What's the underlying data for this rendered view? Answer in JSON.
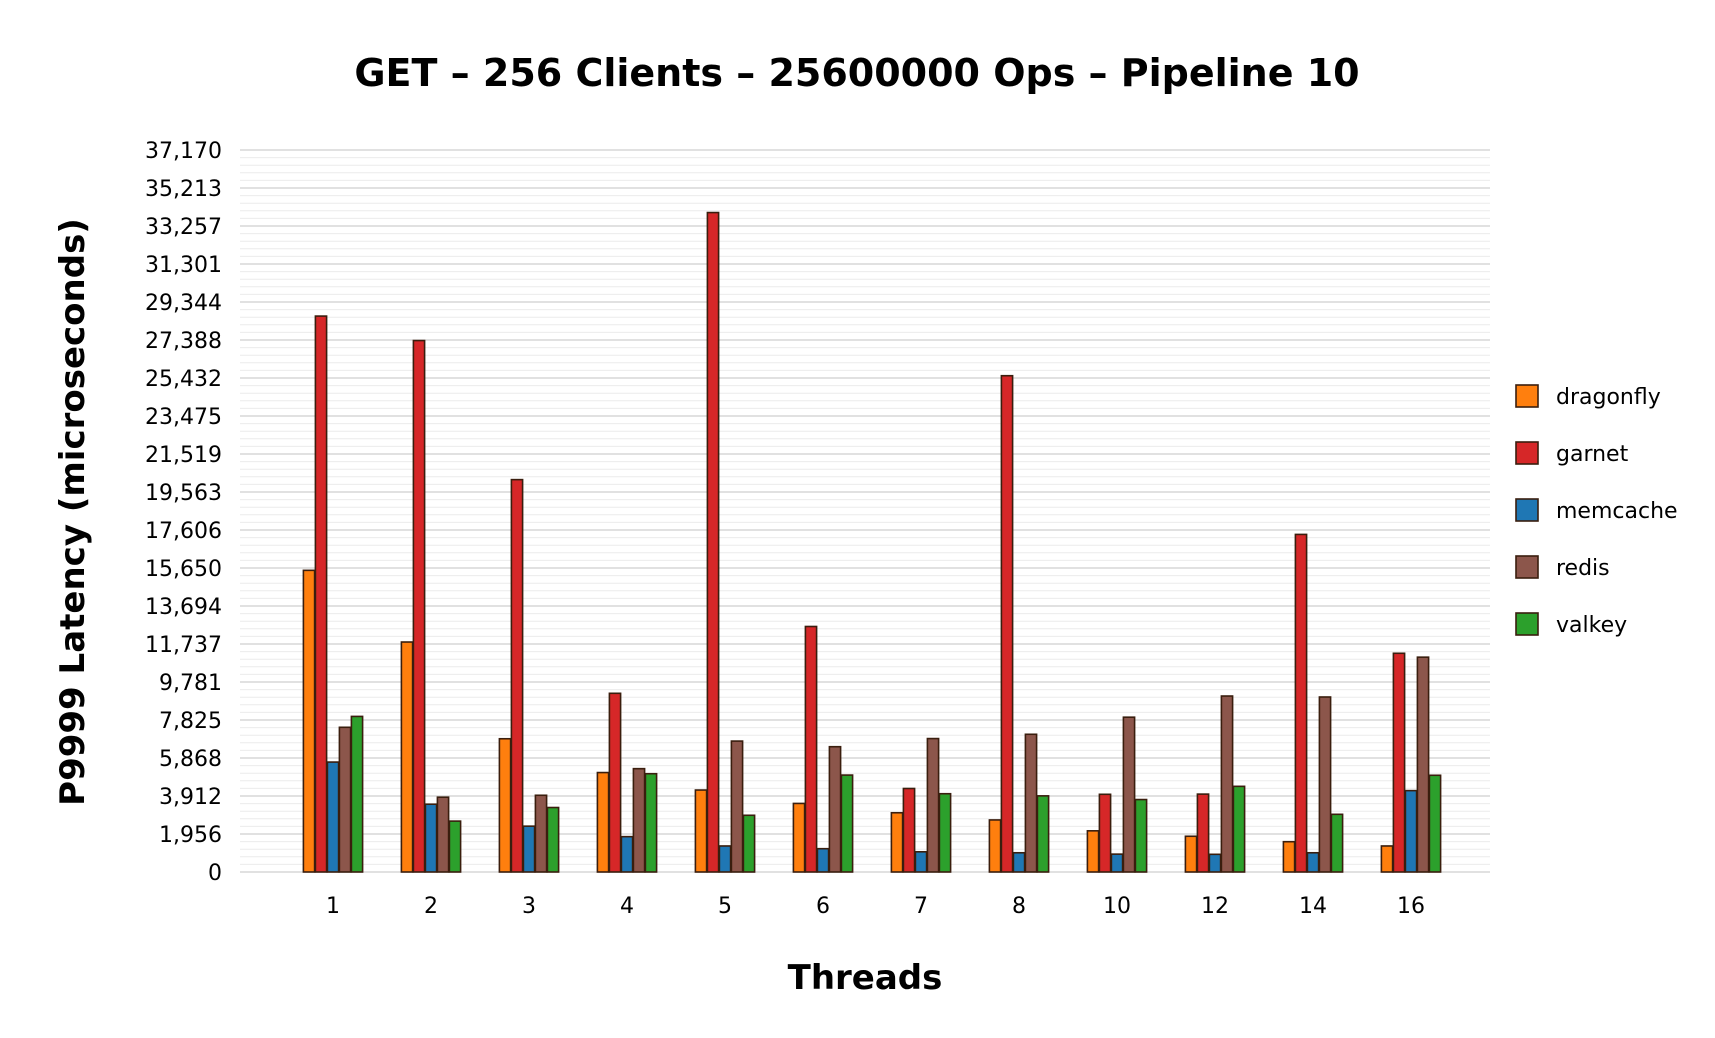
{
  "chart_data": {
    "type": "bar",
    "title": "GET – 256 Clients – 25600000 Ops – Pipeline 10",
    "xlabel": "Threads",
    "ylabel": "P9999 Latency (microseconds)",
    "ylim": [
      0,
      37170
    ],
    "yticks": [
      "0",
      "1,956",
      "3,912",
      "5,868",
      "7,825",
      "9,781",
      "11,737",
      "13,694",
      "15,650",
      "17,606",
      "19,563",
      "21,519",
      "23,475",
      "25,432",
      "27,388",
      "29,344",
      "31,301",
      "33,257",
      "35,213",
      "37,170"
    ],
    "grid": true,
    "legend_position": "right",
    "categories": [
      "1",
      "2",
      "3",
      "4",
      "5",
      "6",
      "7",
      "8",
      "10",
      "12",
      "14",
      "16"
    ],
    "series": [
      {
        "name": "dragonfly",
        "color": "#ff7f0e",
        "values": [
          15530,
          11840,
          6860,
          5120,
          4220,
          3530,
          3050,
          2680,
          2120,
          1840,
          1560,
          1340
        ]
      },
      {
        "name": "garnet",
        "color": "#d62728",
        "values": [
          28620,
          27360,
          20200,
          9200,
          33950,
          12640,
          4300,
          25550,
          4000,
          4010,
          17380,
          11260
        ]
      },
      {
        "name": "memcache",
        "color": "#1f77b4",
        "values": [
          5660,
          3490,
          2360,
          1820,
          1340,
          1200,
          1040,
          990,
          920,
          910,
          990,
          4190
        ]
      },
      {
        "name": "redis",
        "color": "#8c564b",
        "values": [
          7450,
          3850,
          3950,
          5320,
          6740,
          6450,
          6870,
          7090,
          7970,
          9060,
          9010,
          11060
        ]
      },
      {
        "name": "valkey",
        "color": "#2ca02c",
        "values": [
          8010,
          2620,
          3320,
          5060,
          2920,
          4990,
          4030,
          3920,
          3730,
          4410,
          2970,
          4980
        ]
      }
    ]
  }
}
